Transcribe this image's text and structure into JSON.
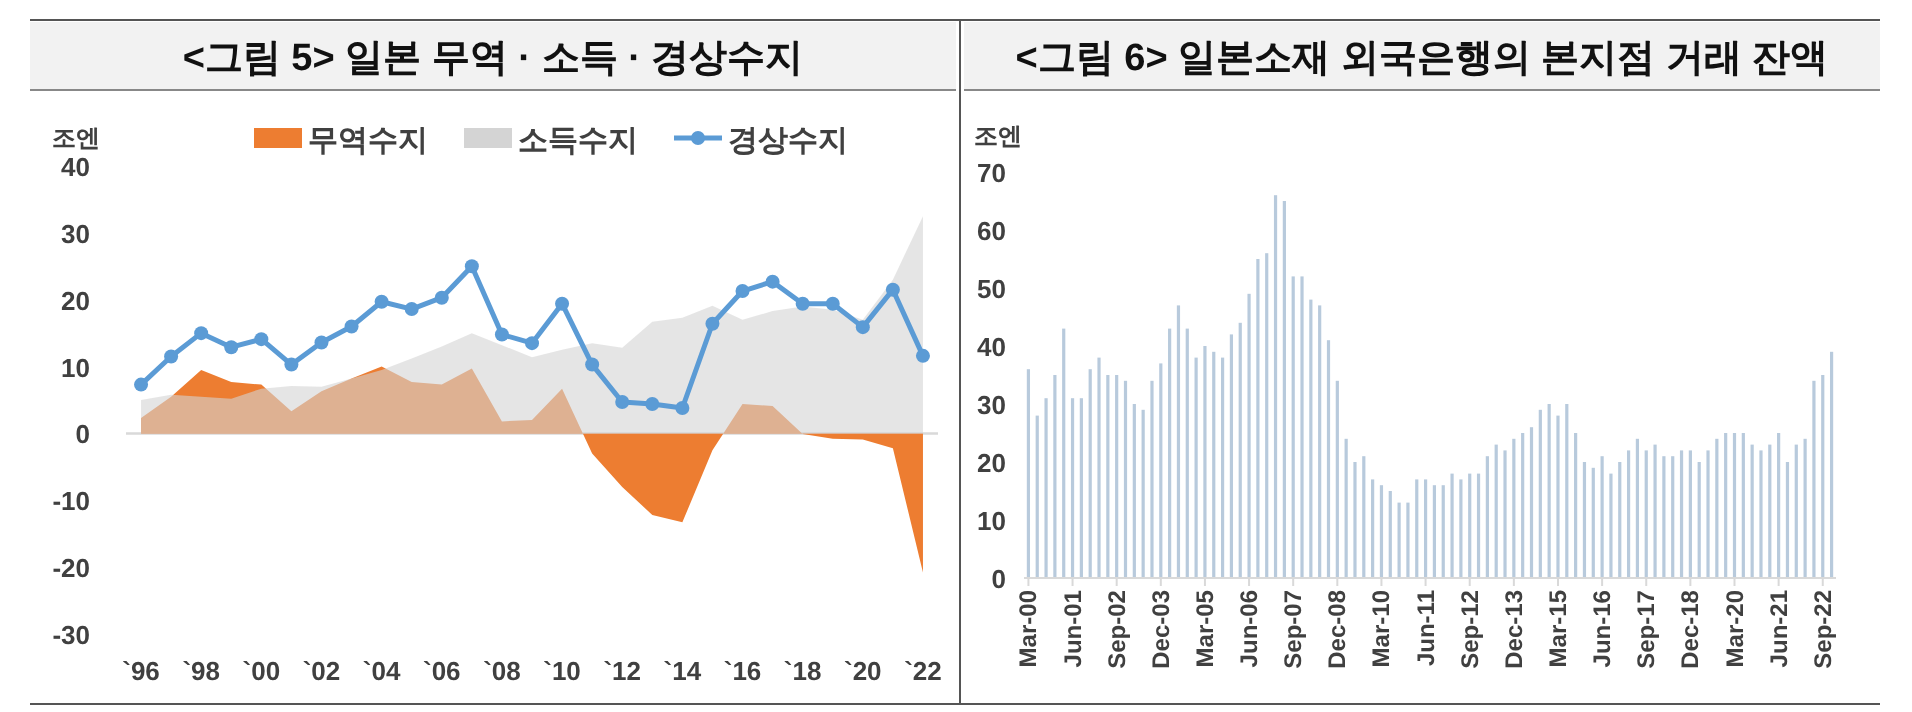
{
  "chart_data": [
    {
      "type": "area",
      "title": "<그림 5> 일본 무역 · 소득 · 경상수지",
      "ylabel": "조엔",
      "categories": [
        "`96",
        null,
        "`98",
        null,
        "`00",
        null,
        "`02",
        null,
        "`04",
        null,
        "`06",
        null,
        "`08",
        null,
        "`10",
        null,
        "`12",
        null,
        "`14",
        null,
        "`16",
        null,
        "`18",
        null,
        "`20",
        null,
        "`22"
      ],
      "series": [
        {
          "name": "무역수지",
          "type": "area",
          "color": "#ed7d31",
          "values": [
            2.3,
            5.5,
            9.5,
            7.7,
            7.3,
            3.3,
            6.3,
            8.2,
            10.0,
            7.7,
            7.3,
            9.7,
            1.8,
            2.0,
            6.7,
            -3.0,
            -8.0,
            -12.2,
            -13.3,
            -2.5,
            4.4,
            4.1,
            -0.1,
            -0.8,
            -0.9,
            -2.2,
            -20.8
          ]
        },
        {
          "name": "소득수지",
          "type": "area",
          "color": "#d4d4d4",
          "values": [
            5.0,
            5.8,
            5.5,
            5.2,
            6.7,
            7.1,
            7.0,
            8.2,
            9.5,
            11.2,
            13.0,
            15.0,
            13.2,
            11.4,
            12.5,
            13.5,
            12.8,
            16.7,
            17.3,
            19.1,
            17.0,
            18.3,
            19.0,
            18.5,
            17.0,
            23.0,
            32.5
          ]
        },
        {
          "name": "경상수지",
          "type": "line",
          "color": "#5b9bd5",
          "marker": "circle",
          "values": [
            7.3,
            11.5,
            15.0,
            12.9,
            14.1,
            10.3,
            13.6,
            16.0,
            19.7,
            18.6,
            20.3,
            25.0,
            14.8,
            13.5,
            19.4,
            10.3,
            4.7,
            4.4,
            3.8,
            16.4,
            21.3,
            22.7,
            19.4,
            19.4,
            15.9,
            21.5,
            11.6
          ]
        }
      ],
      "ylim": [
        -30,
        40
      ],
      "yticks": [
        -30,
        -20,
        -10,
        0,
        10,
        20,
        30,
        40
      ],
      "legend": "top"
    },
    {
      "type": "bar",
      "title": "<그림 6> 일본소재 외국은행의 본지점 거래 잔액",
      "ylabel": "조엔",
      "categories": [
        "Mar-00",
        null,
        null,
        null,
        null,
        "Jun-01",
        null,
        null,
        null,
        null,
        "Sep-02",
        null,
        null,
        null,
        null,
        "Dec-03",
        null,
        null,
        null,
        null,
        "Mar-05",
        null,
        null,
        null,
        null,
        "Jun-06",
        null,
        null,
        null,
        null,
        "Sep-07",
        null,
        null,
        null,
        null,
        "Dec-08",
        null,
        null,
        null,
        null,
        "Mar-10",
        null,
        null,
        null,
        null,
        "Jun-11",
        null,
        null,
        null,
        null,
        "Sep-12",
        null,
        null,
        null,
        null,
        "Dec-13",
        null,
        null,
        null,
        null,
        "Mar-15",
        null,
        null,
        null,
        null,
        "Jun-16",
        null,
        null,
        null,
        null,
        "Sep-17",
        null,
        null,
        null,
        null,
        "Dec-18",
        null,
        null,
        null,
        null,
        "Mar-20",
        null,
        null,
        null,
        null,
        "Jun-21",
        null,
        null,
        null,
        null,
        "Sep-22",
        null
      ],
      "values": [
        36,
        28,
        31,
        35,
        43,
        31,
        31,
        36,
        38,
        35,
        35,
        34,
        30,
        29,
        34,
        37,
        43,
        47,
        43,
        38,
        40,
        39,
        38,
        42,
        44,
        49,
        55,
        56,
        66,
        65,
        52,
        52,
        48,
        47,
        41,
        34,
        24,
        20,
        21,
        17,
        16,
        15,
        13,
        13,
        17,
        17,
        16,
        16,
        18,
        17,
        18,
        18,
        21,
        23,
        22,
        24,
        25,
        26,
        29,
        30,
        28,
        30,
        25,
        20,
        19,
        21,
        18,
        20,
        22,
        24,
        22,
        23,
        21,
        21,
        22,
        22,
        20,
        22,
        24,
        25,
        25,
        25,
        23,
        22,
        23,
        25,
        20,
        23,
        24,
        34,
        35,
        39
      ],
      "color": "#b8cadc",
      "ylim": [
        0,
        70
      ],
      "yticks": [
        0,
        10,
        20,
        30,
        40,
        50,
        60,
        70
      ]
    }
  ]
}
